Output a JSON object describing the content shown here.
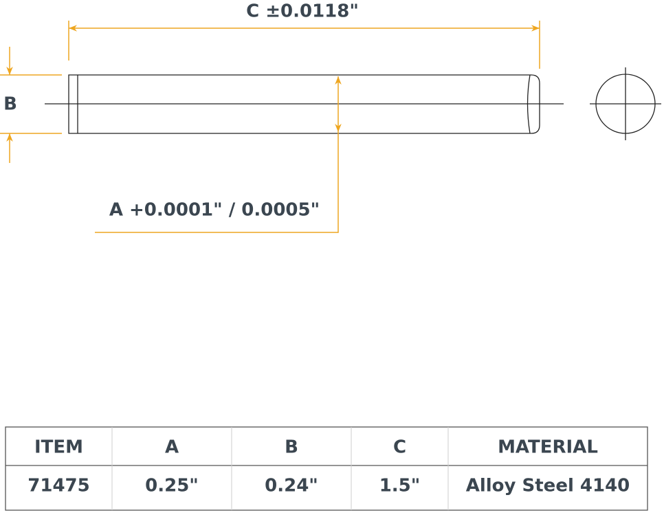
{
  "dimensions": {
    "c_label": "C ±0.0118\"",
    "b_label": "B",
    "a_label": "A +0.0001\" / 0.0005\""
  },
  "table": {
    "header": [
      "ITEM",
      "A",
      "B",
      "C",
      "MATERIAL"
    ],
    "rows": [
      [
        "71475",
        "0.25\"",
        "0.24\"",
        "1.5\"",
        "Alloy Steel 4140"
      ]
    ]
  }
}
